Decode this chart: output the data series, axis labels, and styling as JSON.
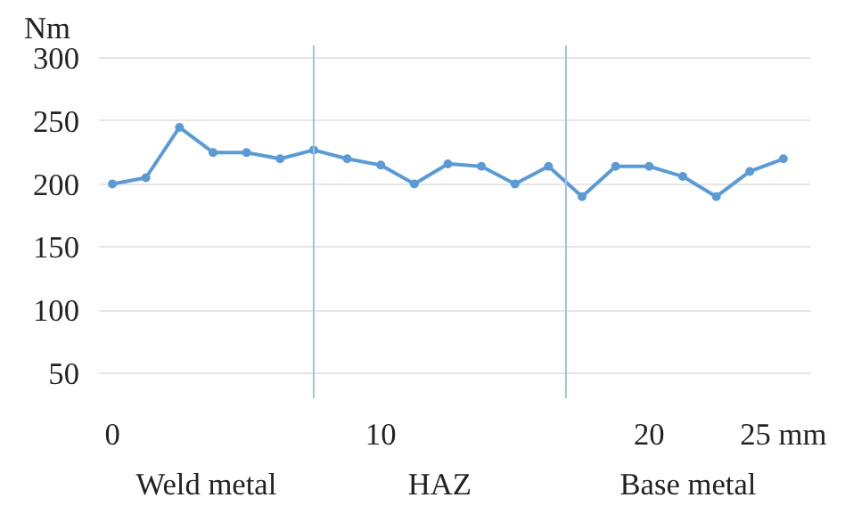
{
  "chart_data": {
    "type": "line",
    "ylabel": "Nm",
    "x": [
      0,
      1.25,
      2.5,
      3.75,
      5,
      6.25,
      7.5,
      8.75,
      10,
      11.25,
      12.5,
      13.75,
      15,
      16.25,
      17.5,
      18.75,
      20,
      21.25,
      22.5,
      23.75,
      25
    ],
    "series": [
      {
        "color": "#5b9bd5",
        "values": [
          200,
          205,
          245,
          225,
          225,
          220,
          227,
          220,
          215,
          200,
          216,
          214,
          200,
          214,
          190,
          214,
          214,
          206,
          190,
          210,
          220
        ]
      }
    ],
    "xlim": [
      -0.5,
      26
    ],
    "ylim": [
      30,
      310
    ],
    "xticks": [
      0,
      10,
      20,
      {
        "value": 25,
        "label": "25 mm"
      }
    ],
    "yticks": [
      50,
      100,
      150,
      200,
      250,
      300
    ],
    "grid": "y",
    "marker": "circle",
    "line_style": "solid",
    "ref_lines": [
      {
        "axis": "x",
        "value": 7.5,
        "color": "#9dc3e6"
      },
      {
        "axis": "x",
        "value": 16.9,
        "color": "#9dc3e6"
      }
    ],
    "annotations": [
      "Weld metal",
      "HAZ",
      "Base metal"
    ]
  }
}
